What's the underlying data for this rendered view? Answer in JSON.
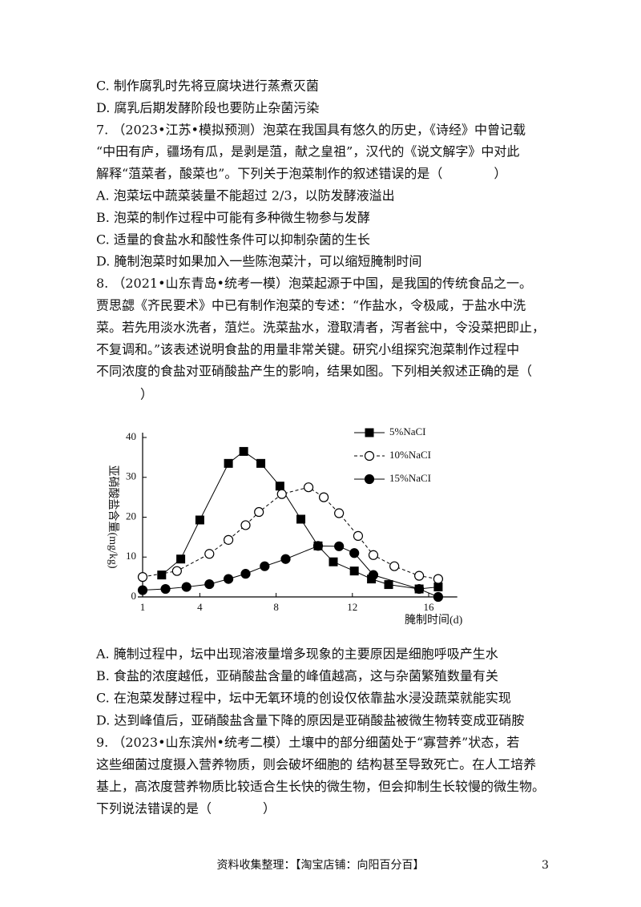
{
  "block1": [
    "C. 制作腐乳时先将豆腐块进行蒸煮灭菌",
    "D. 腐乳后期发酵阶段也要防止杂菌污染",
    "7. （2023•江苏•模拟预测）泡菜在我国具有悠久的历史，《诗经》中曾记载",
    "“中田有庐，疆场有瓜，是剥是菹，献之皇祖”，汉代的《说文解字》中对此",
    "解释“菹菜者，酸菜也”。下列关于泡菜制作的叙述错误的是（　　　　）",
    "A. 泡菜坛中蔬菜装量不能超过 2/3，以防发酵液溢出",
    "B. 泡菜的制作过程中可能有多种微生物参与发酵",
    "C. 适量的食盐水和酸性条件可以抑制杂菌的生长",
    "D. 腌制泡菜时如果加入一些陈泡菜汁，可以缩短腌制时间",
    "8. （2021•山东青岛•统考一模）泡菜起源于中国，是我国的传统食品之一。",
    "贾思勰《齐民要术》中已有制作泡菜的专述：“作盐水，令极咸，于盐水中洗",
    "菜。若先用淡水洗者，菹烂。洗菜盐水，澄取清者，泻者瓮中，令没菜把即止，",
    "不复调和。”该表述说明食盐的用量非常关键。研究小组探究泡菜制作过程中",
    "不同浓度的食盐对亚硝酸盐产生的影响，结果如图。下列相关叙述正确的是（"
  ],
  "block1_tail": "）",
  "chart_data": {
    "type": "line",
    "y_label": "亚硝酸盐含量(mg/kg)",
    "x_label": "腌制时间(d)",
    "xlim": [
      1,
      17.5
    ],
    "ylim": [
      0,
      40
    ],
    "xticks": [
      1,
      4,
      8,
      12,
      16
    ],
    "yticks": [
      0,
      10,
      20,
      30,
      40
    ],
    "legend": "upper right",
    "series": [
      {
        "name": "5%NaCI",
        "marker": "square",
        "dash": false,
        "color": "#000000",
        "x": [
          2,
          3,
          4,
          5.5,
          6.3,
          7.2,
          8.2,
          9.3,
          10.2,
          11,
          12.1,
          13,
          13.9,
          15.5,
          16.5
        ],
        "values": [
          5.5,
          9.5,
          19.3,
          33.5,
          36.5,
          33.5,
          27.8,
          19.5,
          12.8,
          8.8,
          6.5,
          4.5,
          3.1,
          2,
          2.5
        ]
      },
      {
        "name": "10%NaCI",
        "marker": "open-circle",
        "dash": true,
        "color": "#000000",
        "x": [
          1,
          2.8,
          4.5,
          5.5,
          6.4,
          7.1,
          8.3,
          9.7,
          10.5,
          11.3,
          12.3,
          13.1,
          14.2,
          15.5,
          16.5
        ],
        "values": [
          5,
          6.5,
          10.8,
          14.3,
          18,
          21.3,
          25.8,
          27.5,
          25,
          21,
          15.3,
          10.5,
          7.7,
          5.3,
          4.5
        ]
      },
      {
        "name": "15%NaCI",
        "marker": "circle",
        "dash": false,
        "color": "#000000",
        "x": [
          1,
          2.2,
          3.3,
          4.5,
          5.5,
          6.4,
          7.4,
          8.5,
          10.2,
          11.3,
          12.1,
          13.1,
          15.5,
          16.5
        ],
        "values": [
          1.7,
          2,
          2.5,
          3.2,
          4.5,
          5.8,
          7.7,
          9.5,
          12.8,
          12.7,
          11,
          5.5,
          2,
          0
        ]
      }
    ]
  },
  "block2": [
    "A. 腌制过程中，坛中出现溶液量增多现象的主要原因是细胞呼吸产生水",
    "B. 食盐的浓度越低，亚硝酸盐含量的峰值越高，这与杂菌繁殖数量有关",
    "C. 在泡菜发酵过程中，坛中无氧环境的创设仅依靠盐水浸没蔬菜就能实现",
    "D. 达到峰值后，亚硝酸盐含量下降的原因是亚硝酸盐被微生物转变成亚硝胺",
    "9. （2023•山东滨州•统考二模）土壤中的部分细菌处于“寡营养”状态，若",
    "这些细菌过度摄入营养物质，则会破坏细胞的 结构甚至导致死亡。在人工培养",
    "基上，高浓度营养物质比较适合生长快的微生物，但会抑制生长较慢的微生物。",
    "下列说法错误的是（　　　　）"
  ],
  "footer": "资料收集整理：【淘宝店铺：向阳百分百】",
  "page_number": "3"
}
